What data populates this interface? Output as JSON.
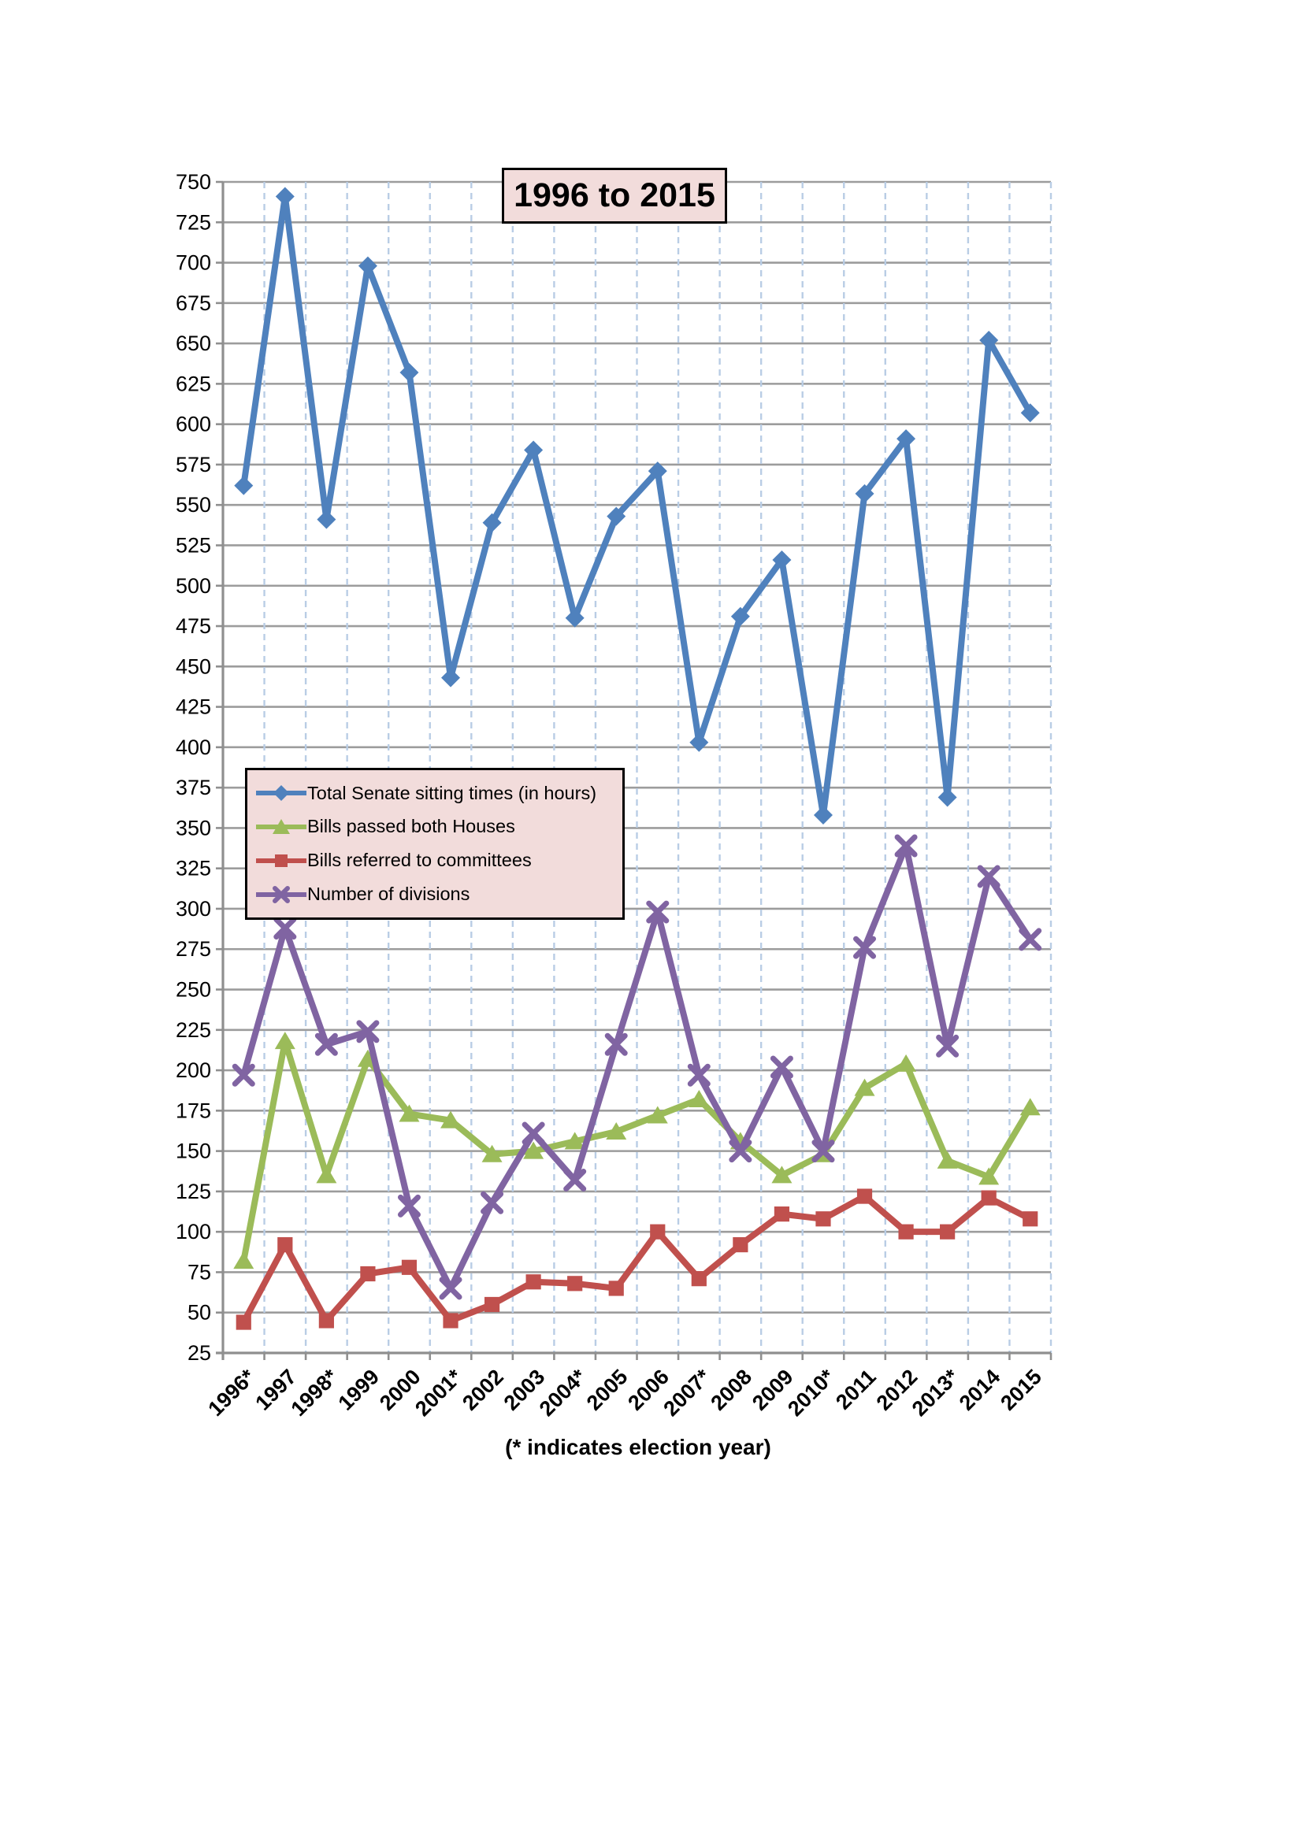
{
  "chart_data": {
    "type": "line",
    "title": "1996 to 2015",
    "note": "(* indicates election year)",
    "xlabel": "",
    "ylabel": "",
    "categories": [
      "1996*",
      "1997",
      "1998*",
      "1999",
      "2000",
      "2001*",
      "2002",
      "2003",
      "2004*",
      "2005",
      "2006",
      "2007*",
      "2008",
      "2009",
      "2010*",
      "2011",
      "2012",
      "2013*",
      "2014",
      "2015"
    ],
    "series": [
      {
        "name": "Total Senate sitting times (in hours)",
        "marker": "diamond",
        "color": "#4F81BD",
        "values": [
          562,
          741,
          541,
          698,
          632,
          443,
          539,
          584,
          480,
          543,
          571,
          403,
          481,
          516,
          358,
          557,
          591,
          369,
          652,
          607
        ]
      },
      {
        "name": "Bills passed both Houses",
        "marker": "triangle",
        "color": "#9BBB59",
        "values": [
          82,
          218,
          135,
          207,
          173,
          169,
          148,
          150,
          156,
          162,
          172,
          182,
          156,
          135,
          148,
          189,
          204,
          144,
          134,
          177
        ]
      },
      {
        "name": "Bills referred to committees",
        "marker": "square",
        "color": "#C0504D",
        "values": [
          44,
          92,
          45,
          74,
          78,
          45,
          55,
          69,
          68,
          65,
          100,
          71,
          92,
          111,
          108,
          122,
          100,
          100,
          121,
          108
        ]
      },
      {
        "name": "Number of divisions",
        "marker": "x",
        "color": "#8064A2",
        "values": [
          197,
          288,
          216,
          224,
          116,
          65,
          118,
          161,
          132,
          216,
          298,
          197,
          150,
          202,
          150,
          276,
          339,
          215,
          320,
          281
        ]
      }
    ],
    "ylim": [
      25,
      750
    ],
    "ytick_step": 25,
    "grid": {
      "horizontal": "solid",
      "vertical": "dashed"
    },
    "legend_position": "inside-middle-left",
    "colors": {
      "plot_bg": "#FFFFFF",
      "gridline": "#9C9C9C",
      "vertical_gridline": "#B9CDE5",
      "axis": "#8F8F8F",
      "label_box_bg": "#F2DCDB",
      "label_box_border": "#000000",
      "text": "#000000"
    }
  }
}
